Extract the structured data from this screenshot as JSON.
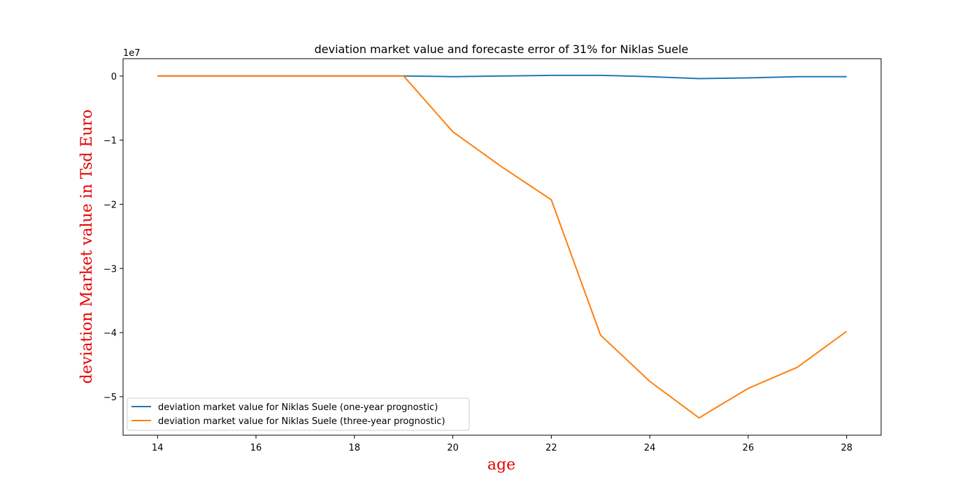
{
  "chart_data": {
    "type": "line",
    "title": "deviation market value and forecaste error of 31% for Niklas Suele",
    "xlabel": "age",
    "ylabel": "deviation Market value in Tsd Euro",
    "y_offset_label": "1e7",
    "xlim": [
      13.3,
      28.7
    ],
    "ylim": [
      -5.6,
      0.27
    ],
    "x_ticks": [
      14,
      16,
      18,
      20,
      22,
      24,
      26,
      28
    ],
    "x_tick_labels": [
      "14",
      "16",
      "18",
      "20",
      "22",
      "24",
      "26",
      "28"
    ],
    "y_ticks": [
      0,
      -1,
      -2,
      -3,
      -4,
      -5
    ],
    "y_tick_labels": [
      "0",
      "−1",
      "−2",
      "−3",
      "−4",
      "−5"
    ],
    "grid": false,
    "legend_position": "lower-left",
    "x": [
      14,
      15,
      16,
      17,
      18,
      19,
      20,
      21,
      22,
      23,
      24,
      25,
      26,
      27,
      28
    ],
    "series": [
      {
        "name": "deviation market value for Niklas Suele (one-year prognostic)",
        "color": "#1f77b4",
        "values": [
          0,
          0,
          0,
          0,
          0,
          0,
          -0.01,
          0,
          0.01,
          0.01,
          -0.01,
          -0.04,
          -0.03,
          -0.01,
          -0.01
        ]
      },
      {
        "name": "deviation market value for Niklas Suele (three-year prognostic)",
        "color": "#ff7f0e",
        "values": [
          0,
          0,
          0,
          0,
          0,
          0,
          -0.87,
          -1.42,
          -1.93,
          -4.04,
          -4.76,
          -5.33,
          -4.87,
          -4.54,
          -3.98
        ]
      }
    ]
  }
}
